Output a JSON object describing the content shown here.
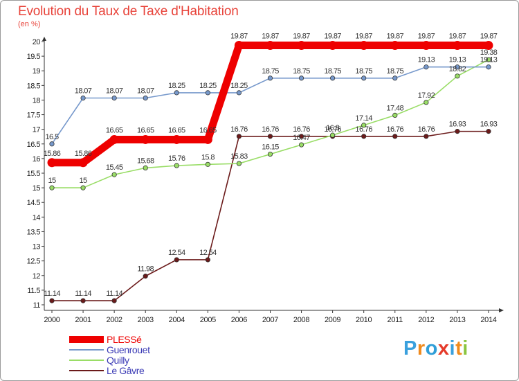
{
  "chart_data": {
    "type": "line",
    "title": "Evolution du Taux de Taxe d'Habitation",
    "unit_label": "(en %)",
    "xlabel": "",
    "ylabel": "(en %)",
    "x": [
      "2000",
      "2001",
      "2002",
      "2003",
      "2004",
      "2005",
      "2006",
      "2007",
      "2008",
      "2009",
      "2010",
      "2011",
      "2012",
      "2013",
      "2014"
    ],
    "ylim": [
      11,
      20
    ],
    "y_ticks": [
      "11",
      "11.5",
      "12",
      "12.5",
      "13",
      "13.5",
      "14",
      "14.5",
      "15",
      "15.5",
      "16",
      "16.5",
      "17",
      "17.5",
      "18",
      "18.5",
      "19",
      "19.5",
      "20"
    ],
    "grid": false,
    "legend_position": "bottom-left",
    "series": [
      {
        "name": "Le Gâvre",
        "color": "#6b1a1a",
        "values": [
          11.14,
          11.14,
          11.14,
          11.98,
          12.54,
          12.54,
          16.76,
          16.76,
          16.76,
          16.76,
          16.76,
          16.76,
          16.76,
          16.93,
          16.93
        ],
        "labels": [
          "11.14",
          "11.14",
          "11.14",
          "11.98",
          "12.54",
          "12.54",
          "16.76",
          "16.76",
          "16.76",
          "16.76",
          "16.76",
          "16.76",
          "16.76",
          "16.93",
          "16.93"
        ]
      },
      {
        "name": "Quilly",
        "color": "#99dd66",
        "values": [
          15,
          15,
          15.45,
          15.68,
          15.76,
          15.8,
          15.83,
          16.15,
          16.47,
          16.8,
          17.14,
          17.48,
          17.92,
          18.82,
          19.38
        ],
        "labels": [
          "15",
          "15",
          "15.45",
          "15.68",
          "15.76",
          "15.8",
          "15.83",
          "16.15",
          "16.47",
          "16.8",
          "17.14",
          "17.48",
          "17.92",
          "18.82",
          "19.38"
        ]
      },
      {
        "name": "Guenrouet",
        "color": "#7799cc",
        "values": [
          16.5,
          18.07,
          18.07,
          18.07,
          18.25,
          18.25,
          18.25,
          18.75,
          18.75,
          18.75,
          18.75,
          18.75,
          19.13,
          19.13,
          19.13
        ],
        "labels": [
          "16.5",
          "18.07",
          "18.07",
          "18.07",
          "18.25",
          "18.25",
          "18.25",
          "18.75",
          "18.75",
          "18.75",
          "18.75",
          "18.75",
          "19.13",
          "19.13",
          "19.13"
        ]
      },
      {
        "name": "PLESSé",
        "color": "#ee0000",
        "values": [
          15.86,
          15.86,
          16.65,
          16.65,
          16.65,
          16.65,
          19.87,
          19.87,
          19.87,
          19.87,
          19.87,
          19.87,
          19.87,
          19.87,
          19.87
        ],
        "labels": [
          "15.86",
          "15.86",
          "16.65",
          "16.65",
          "16.65",
          "16.65",
          "19.87",
          "19.87",
          "19.87",
          "19.87",
          "19.87",
          "19.87",
          "19.87",
          "19.87",
          "19.87"
        ]
      }
    ],
    "legend_order": [
      "PLESSé",
      "Guenrouet",
      "Quilly",
      "Le Gâvre"
    ]
  },
  "brand": {
    "letters": [
      "P",
      "r",
      "o",
      "x",
      "i",
      "t",
      "i"
    ],
    "colors": [
      "#3aa0dd",
      "#f08a1c",
      "#2f9ed8",
      "#e53a2a",
      "#3aa0dd",
      "#f08a1c",
      "#8bc53f"
    ]
  }
}
